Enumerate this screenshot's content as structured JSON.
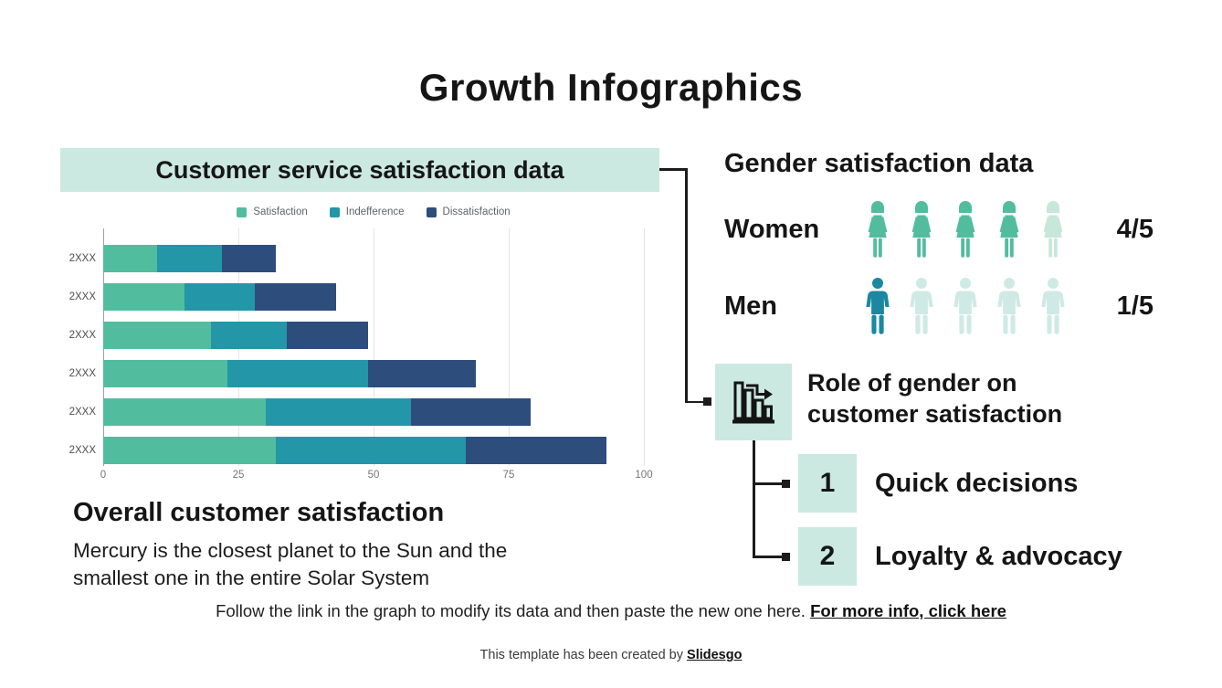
{
  "slide": {
    "title": "Growth Infographics",
    "footer": {
      "note": "Follow the link in the graph to modify its data and then paste the new one here. ",
      "link": "For more info, click here"
    },
    "credit": {
      "text": "This template has been created by ",
      "link": "Slidesgo"
    }
  },
  "left": {
    "header": "Customer service satisfaction data",
    "subtitle": "Overall customer satisfaction",
    "description": "Mercury is the closest planet to the Sun and the\nsmallest one in the entire Solar System"
  },
  "chart_data": {
    "type": "bar",
    "orientation": "horizontal",
    "stacked": true,
    "categories": [
      "2XXX",
      "2XXX",
      "2XXX",
      "2XXX",
      "2XXX",
      "2XXX"
    ],
    "series": [
      {
        "name": "Satisfaction",
        "color": "#52bd9e",
        "values": [
          10,
          15,
          20,
          23,
          30,
          32
        ]
      },
      {
        "name": "Indefference",
        "color": "#2397a7",
        "values": [
          12,
          13,
          14,
          26,
          27,
          35
        ]
      },
      {
        "name": "Dissatisfaction",
        "color": "#2d4d7c",
        "values": [
          10,
          15,
          15,
          20,
          22,
          26
        ]
      }
    ],
    "x_ticks": [
      0,
      25,
      50,
      75,
      100
    ],
    "xlim": [
      0,
      100
    ],
    "grid": true,
    "legend_position": "top"
  },
  "right": {
    "header": "Gender satisfaction data",
    "rows": [
      {
        "label": "Women",
        "score": "4/5",
        "filled": 4,
        "total": 5,
        "icon": "woman-icon",
        "active_color": "#52bd9e",
        "inactive_color": "#c6e7da"
      },
      {
        "label": "Men",
        "score": "1/5",
        "filled": 1,
        "total": 5,
        "icon": "man-icon",
        "active_color": "#1b87a0",
        "inactive_color": "#cfeae5"
      }
    ],
    "role_heading": "Role of gender on\ncustomer satisfaction",
    "role_icon": "bar-chart-trend-icon",
    "items": [
      {
        "number": "1",
        "label": "Quick decisions"
      },
      {
        "number": "2",
        "label": "Loyalty & advocacy"
      }
    ]
  },
  "colors": {
    "mint": "#cbe9e1",
    "green": "#52bd9e",
    "teal": "#2397a7",
    "navy": "#2d4d7c",
    "text": "#151515"
  }
}
